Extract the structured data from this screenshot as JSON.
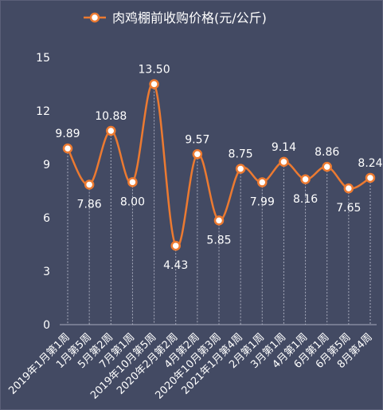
{
  "chart_data": {
    "type": "line",
    "title": "",
    "xlabel": "",
    "ylabel": "",
    "legend": {
      "position": "top-center",
      "label": "肉鸡棚前收购价格(元/公斤)"
    },
    "categories": [
      "2019年1月第1周",
      "1月第5周",
      "5月第2周",
      "7月第1周",
      "2019年10月第5周",
      "2020年2月第2周",
      "4月第2周",
      "2020年10月第3周",
      "2021年1月第4周",
      "2月第1周",
      "3月第1周",
      "4月第1周",
      "6月第1周",
      "6月第5周",
      "8月第4周"
    ],
    "series": [
      {
        "name": "肉鸡棚前收购价格(元/公斤)",
        "values": [
          9.89,
          7.86,
          10.88,
          8.0,
          13.5,
          4.43,
          9.57,
          5.85,
          8.75,
          7.99,
          9.14,
          8.16,
          8.86,
          7.65,
          8.24
        ],
        "labels": [
          "9.89",
          "7.86",
          "10.88",
          "8.00",
          "13.50",
          "4.43",
          "9.57",
          "5.85",
          "8.75",
          "7.99",
          "9.14",
          "8.16",
          "8.86",
          "7.65",
          "8.24"
        ],
        "label_position": [
          "above",
          "below",
          "above",
          "below",
          "above",
          "below",
          "above",
          "below",
          "above",
          "below",
          "above",
          "below",
          "above",
          "below",
          "above"
        ]
      }
    ],
    "yticks": [
      "0",
      "3",
      "6",
      "9",
      "12",
      "15"
    ],
    "ylim": [
      0,
      15
    ],
    "grid": false,
    "drop_lines": true,
    "smooth": true,
    "colors": {
      "background": "#434a63",
      "line": "#ec7a31",
      "marker_fill": "#ffffff",
      "text": "#ffffff",
      "drop_line": "#a7abbc",
      "axis": "#a7abbc"
    }
  }
}
